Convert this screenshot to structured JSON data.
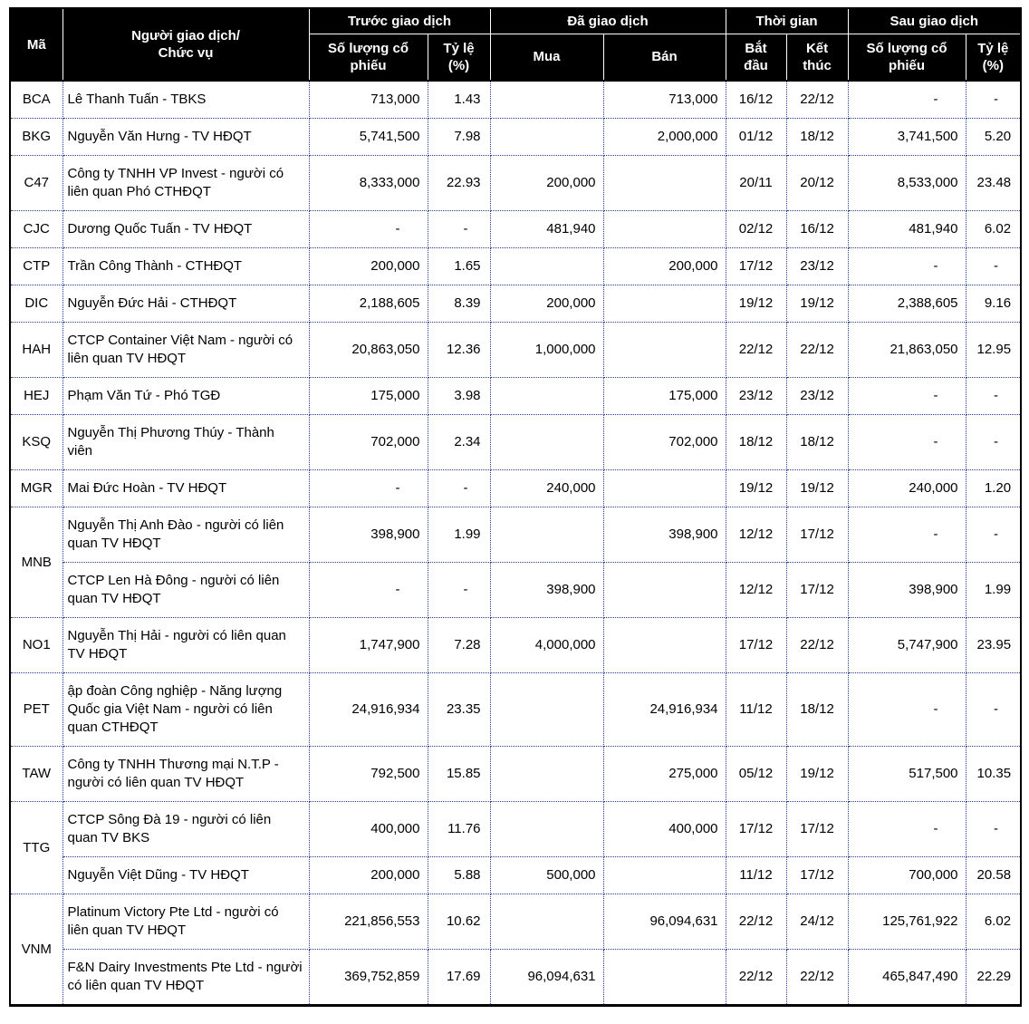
{
  "colors": {
    "header_bg": "#000000",
    "header_text": "#ffffff",
    "inner_border": "#26418f",
    "outer_border": "#000000"
  },
  "table": {
    "header": {
      "code_label": "Mã",
      "person_label": "Người giao dịch/\nChức vụ",
      "groups": [
        {
          "label": "Trước giao dịch",
          "cols": [
            "Số lượng cổ\nphiếu",
            "Tỷ lệ\n(%)"
          ]
        },
        {
          "label": "Đã giao dịch",
          "cols": [
            "Mua",
            "Bán"
          ]
        },
        {
          "label": "Thời gian",
          "cols": [
            "Bắt\nđầu",
            "Kết\nthúc"
          ]
        },
        {
          "label": "Sau giao dịch",
          "cols": [
            "Số lượng cổ\nphiếu",
            "Tỷ lệ\n(%)"
          ]
        }
      ]
    },
    "columns_order": [
      "person",
      "before_qty",
      "before_pct",
      "buy",
      "sell",
      "start",
      "end",
      "after_qty",
      "after_pct"
    ],
    "column_classes": {
      "person": "c-person",
      "before_qty": "c-num",
      "before_pct": "c-pct",
      "buy": "c-num",
      "sell": "c-num",
      "start": "c-date",
      "end": "c-date",
      "after_qty": "c-num",
      "after_pct": "c-pct"
    },
    "groups_rows": [
      {
        "code": "BCA",
        "entries": [
          {
            "person": "Lê Thanh Tuấn - TBKS",
            "before_qty": "713,000",
            "before_pct": "1.43",
            "buy": "",
            "sell": "713,000",
            "start": "16/12",
            "end": "22/12",
            "after_qty": "-",
            "after_pct": "-"
          }
        ]
      },
      {
        "code": "BKG",
        "entries": [
          {
            "person": "Nguyễn Văn Hưng - TV HĐQT",
            "before_qty": "5,741,500",
            "before_pct": "7.98",
            "buy": "",
            "sell": "2,000,000",
            "start": "01/12",
            "end": "18/12",
            "after_qty": "3,741,500",
            "after_pct": "5.20"
          }
        ]
      },
      {
        "code": "C47",
        "entries": [
          {
            "person": "Công ty TNHH VP Invest - người có liên quan Phó CTHĐQT",
            "before_qty": "8,333,000",
            "before_pct": "22.93",
            "buy": "200,000",
            "sell": "",
            "start": "20/11",
            "end": "20/12",
            "after_qty": "8,533,000",
            "after_pct": "23.48"
          }
        ]
      },
      {
        "code": "CJC",
        "entries": [
          {
            "person": "Dương Quốc Tuấn - TV HĐQT",
            "before_qty": "-",
            "before_pct": "-",
            "buy": "481,940",
            "sell": "",
            "start": "02/12",
            "end": "16/12",
            "after_qty": "481,940",
            "after_pct": "6.02"
          }
        ]
      },
      {
        "code": "CTP",
        "entries": [
          {
            "person": "Trần Công Thành - CTHĐQT",
            "before_qty": "200,000",
            "before_pct": "1.65",
            "buy": "",
            "sell": "200,000",
            "start": "17/12",
            "end": "23/12",
            "after_qty": "-",
            "after_pct": "-"
          }
        ]
      },
      {
        "code": "DIC",
        "entries": [
          {
            "person": "Nguyễn Đức Hải - CTHĐQT",
            "before_qty": "2,188,605",
            "before_pct": "8.39",
            "buy": "200,000",
            "sell": "",
            "start": "19/12",
            "end": "19/12",
            "after_qty": "2,388,605",
            "after_pct": "9.16"
          }
        ]
      },
      {
        "code": "HAH",
        "entries": [
          {
            "person": "CTCP Container Việt Nam - người có liên quan TV HĐQT",
            "before_qty": "20,863,050",
            "before_pct": "12.36",
            "buy": "1,000,000",
            "sell": "",
            "start": "22/12",
            "end": "22/12",
            "after_qty": "21,863,050",
            "after_pct": "12.95"
          }
        ]
      },
      {
        "code": "HEJ",
        "entries": [
          {
            "person": "Phạm Văn Tứ - Phó TGĐ",
            "before_qty": "175,000",
            "before_pct": "3.98",
            "buy": "",
            "sell": "175,000",
            "start": "23/12",
            "end": "23/12",
            "after_qty": "-",
            "after_pct": "-"
          }
        ]
      },
      {
        "code": "KSQ",
        "entries": [
          {
            "person": "Nguyễn Thị Phương Thúy - Thành viên",
            "before_qty": "702,000",
            "before_pct": "2.34",
            "buy": "",
            "sell": "702,000",
            "start": "18/12",
            "end": "18/12",
            "after_qty": "-",
            "after_pct": "-"
          }
        ]
      },
      {
        "code": "MGR",
        "entries": [
          {
            "person": "Mai Đức Hoàn - TV HĐQT",
            "before_qty": "-",
            "before_pct": "-",
            "buy": "240,000",
            "sell": "",
            "start": "19/12",
            "end": "19/12",
            "after_qty": "240,000",
            "after_pct": "1.20"
          }
        ]
      },
      {
        "code": "MNB",
        "entries": [
          {
            "person": "Nguyễn Thị Anh Đào - người có liên quan TV HĐQT",
            "before_qty": "398,900",
            "before_pct": "1.99",
            "buy": "",
            "sell": "398,900",
            "start": "12/12",
            "end": "17/12",
            "after_qty": "-",
            "after_pct": "-"
          },
          {
            "person": "CTCP Len Hà Đông - người có liên quan TV HĐQT",
            "before_qty": "-",
            "before_pct": "-",
            "buy": "398,900",
            "sell": "",
            "start": "12/12",
            "end": "17/12",
            "after_qty": "398,900",
            "after_pct": "1.99"
          }
        ]
      },
      {
        "code": "NO1",
        "entries": [
          {
            "person": "Nguyễn Thị Hải - người có liên quan TV HĐQT",
            "before_qty": "1,747,900",
            "before_pct": "7.28",
            "buy": "4,000,000",
            "sell": "",
            "start": "17/12",
            "end": "22/12",
            "after_qty": "5,747,900",
            "after_pct": "23.95"
          }
        ]
      },
      {
        "code": "PET",
        "entries": [
          {
            "person": "ập đoàn Công nghiệp - Năng lượng Quốc gia Việt Nam - người có liên quan CTHĐQT",
            "before_qty": "24,916,934",
            "before_pct": "23.35",
            "buy": "",
            "sell": "24,916,934",
            "start": "11/12",
            "end": "18/12",
            "after_qty": "-",
            "after_pct": "-"
          }
        ]
      },
      {
        "code": "TAW",
        "entries": [
          {
            "person": "Công ty TNHH Thương mại N.T.P - người có liên quan TV HĐQT",
            "before_qty": "792,500",
            "before_pct": "15.85",
            "buy": "",
            "sell": "275,000",
            "start": "05/12",
            "end": "19/12",
            "after_qty": "517,500",
            "after_pct": "10.35"
          }
        ]
      },
      {
        "code": "TTG",
        "entries": [
          {
            "person": "CTCP Sông Đà 19 - người có liên quan TV BKS",
            "before_qty": "400,000",
            "before_pct": "11.76",
            "buy": "",
            "sell": "400,000",
            "start": "17/12",
            "end": "17/12",
            "after_qty": "-",
            "after_pct": "-"
          },
          {
            "person": "Nguyễn Việt Dũng - TV HĐQT",
            "before_qty": "200,000",
            "before_pct": "5.88",
            "buy": "500,000",
            "sell": "",
            "start": "11/12",
            "end": "17/12",
            "after_qty": "700,000",
            "after_pct": "20.58"
          }
        ]
      },
      {
        "code": "VNM",
        "entries": [
          {
            "person": "Platinum Victory Pte Ltd - người có liên quan TV HĐQT",
            "before_qty": "221,856,553",
            "before_pct": "10.62",
            "buy": "",
            "sell": "96,094,631",
            "start": "22/12",
            "end": "24/12",
            "after_qty": "125,761,922",
            "after_pct": "6.02"
          },
          {
            "person": "F&N Dairy Investments Pte Ltd - người có liên quan TV HĐQT",
            "before_qty": "369,752,859",
            "before_pct": "17.69",
            "buy": "96,094,631",
            "sell": "",
            "start": "22/12",
            "end": "22/12",
            "after_qty": "465,847,490",
            "after_pct": "22.29"
          }
        ]
      }
    ]
  }
}
